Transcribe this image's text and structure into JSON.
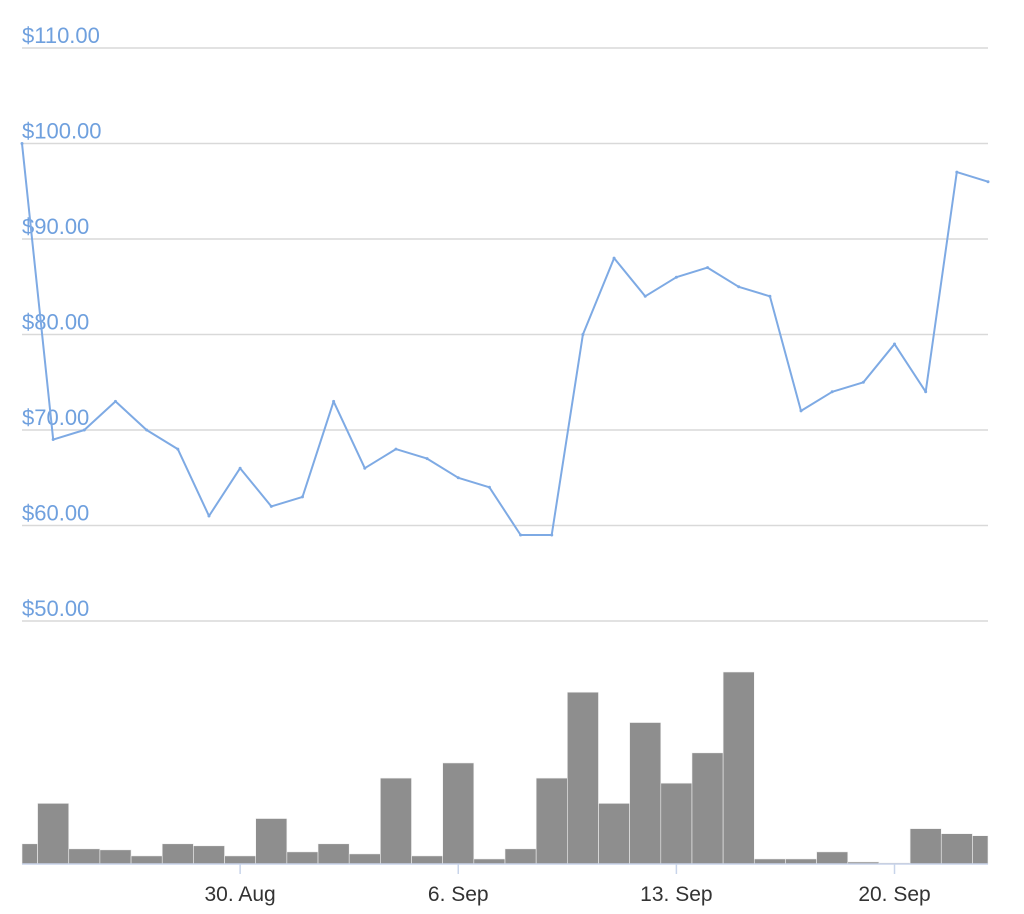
{
  "chart_data": [
    {
      "type": "line",
      "title": "",
      "xlabel": "",
      "ylabel": "",
      "y_tick_labels": [
        "$110.00",
        "$100.00",
        "$90.00",
        "$80.00",
        "$70.00",
        "$60.00",
        "$50.00"
      ],
      "y_ticks": [
        110,
        100,
        90,
        80,
        70,
        60,
        50
      ],
      "ylim": [
        50,
        110
      ],
      "x_tick_labels": [
        "30. Aug",
        "6. Sep",
        "13. Sep",
        "20. Sep"
      ],
      "x_ticks": [
        "2021-08-30",
        "2021-09-06",
        "2021-09-13",
        "2021-09-20"
      ],
      "x_range": [
        "2021-08-23",
        "2021-09-23"
      ],
      "grid": true,
      "line_color": "#7eaae4",
      "series": [
        {
          "x": [
            "2021-08-23",
            "2021-08-24",
            "2021-08-25",
            "2021-08-26",
            "2021-08-27",
            "2021-08-28",
            "2021-08-29",
            "2021-08-30",
            "2021-08-31",
            "2021-09-01",
            "2021-09-02",
            "2021-09-03",
            "2021-09-04",
            "2021-09-05",
            "2021-09-06",
            "2021-09-07",
            "2021-09-08",
            "2021-09-09",
            "2021-09-10",
            "2021-09-11",
            "2021-09-12",
            "2021-09-13",
            "2021-09-14",
            "2021-09-15",
            "2021-09-16",
            "2021-09-17",
            "2021-09-18",
            "2021-09-19",
            "2021-09-20",
            "2021-09-21",
            "2021-09-22",
            "2021-09-23"
          ],
          "values": [
            100,
            69,
            70,
            73,
            70,
            68,
            61,
            66,
            62,
            63,
            73,
            66,
            68,
            67,
            65,
            64,
            59,
            59,
            80,
            88,
            84,
            86,
            87,
            85,
            84,
            72,
            74,
            75,
            79,
            74,
            97,
            96
          ]
        }
      ]
    },
    {
      "type": "area",
      "title": "",
      "xlabel": "",
      "ylabel": "",
      "fill_color": "#8e8e8e",
      "series": [
        {
          "x": [
            "2021-08-23",
            "2021-08-24",
            "2021-08-25",
            "2021-08-26",
            "2021-08-27",
            "2021-08-28",
            "2021-08-29",
            "2021-08-30",
            "2021-08-31",
            "2021-09-01",
            "2021-09-02",
            "2021-09-03",
            "2021-09-04",
            "2021-09-05",
            "2021-09-06",
            "2021-09-07",
            "2021-09-08",
            "2021-09-09",
            "2021-09-10",
            "2021-09-11",
            "2021-09-12",
            "2021-09-13",
            "2021-09-14",
            "2021-09-15",
            "2021-09-16",
            "2021-09-17",
            "2021-09-18",
            "2021-09-19",
            "2021-09-20",
            "2021-09-21",
            "2021-09-22",
            "2021-09-23"
          ],
          "values": [
            20,
            60,
            15,
            14,
            8,
            20,
            18,
            8,
            45,
            12,
            20,
            10,
            85,
            8,
            100,
            5,
            15,
            85,
            170,
            60,
            140,
            80,
            110,
            190,
            5,
            5,
            12,
            2,
            1,
            35,
            30,
            28
          ]
        }
      ]
    }
  ]
}
